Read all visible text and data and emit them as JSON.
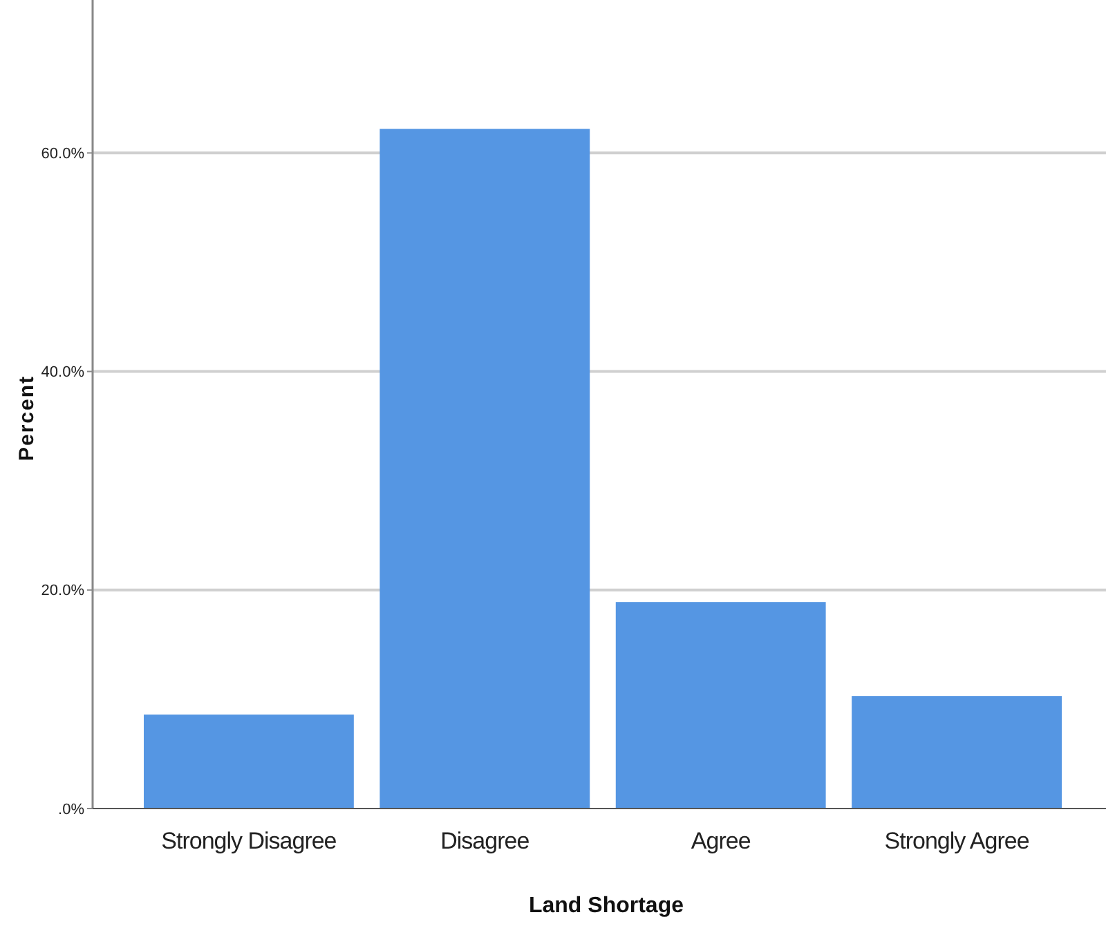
{
  "chart_data": {
    "type": "bar",
    "xlabel": "Land Shortage",
    "ylabel": "Percent",
    "categories": [
      "Strongly Disagree",
      "Disagree",
      "Agree",
      "Strongly Agree"
    ],
    "values": [
      8.6,
      62.2,
      18.9,
      10.3
    ],
    "color": "#5596e3",
    "ylim": [
      0,
      74
    ],
    "yticks": [
      {
        "value": 0,
        "label": ".0%"
      },
      {
        "value": 20,
        "label": "20.0%"
      },
      {
        "value": 40,
        "label": "40.0%"
      },
      {
        "value": 60,
        "label": "60.0%"
      }
    ],
    "grid": "y"
  }
}
